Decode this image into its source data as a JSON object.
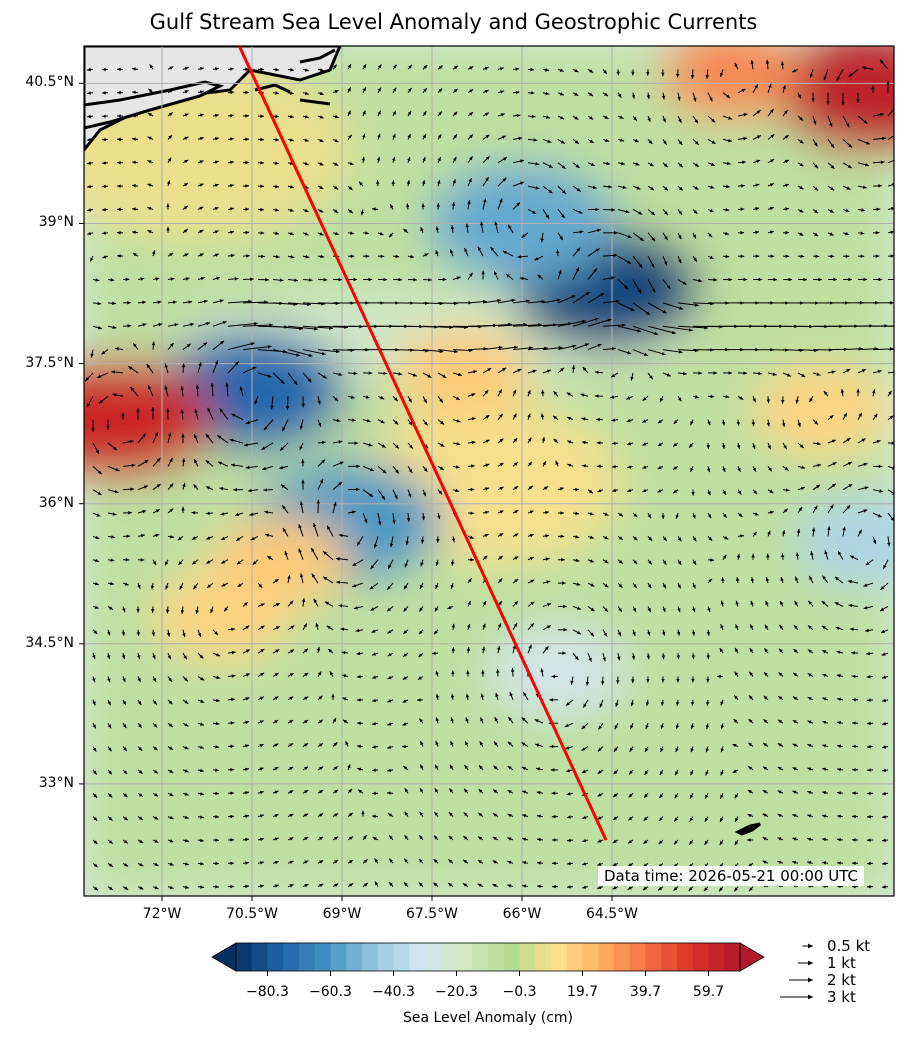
{
  "title": "Gulf Stream Sea Level Anomaly and Geostrophic Currents",
  "map": {
    "lon_range": [
      -73.3,
      -59.8
    ],
    "lat_range": [
      31.8,
      40.9
    ],
    "lat_ticks": [
      {
        "value": 40.5,
        "label": "40.5°N"
      },
      {
        "value": 39,
        "label": "39°N"
      },
      {
        "value": 37.5,
        "label": "37.5°N"
      },
      {
        "value": 36,
        "label": "36°N"
      },
      {
        "value": 34.5,
        "label": "34.5°N"
      },
      {
        "value": 33,
        "label": "33°N"
      }
    ],
    "lon_ticks": [
      {
        "value": -72,
        "label": "72°W"
      },
      {
        "value": -70.5,
        "label": "70.5°W"
      },
      {
        "value": -69,
        "label": "69°W"
      },
      {
        "value": -67.5,
        "label": "67.5°W"
      },
      {
        "value": -66,
        "label": "66°W"
      },
      {
        "value": -64.5,
        "label": "64.5°W"
      }
    ],
    "track": {
      "color": "#ff0000",
      "start": {
        "lon": -71.0,
        "lat": 41.3
      },
      "end": {
        "lon": -64.6,
        "lat": 32.4
      }
    },
    "grid": true,
    "land_color": "#e6e6e6"
  },
  "data_time": "Data time: 2026-05-21 00:00 UTC",
  "colorbar": {
    "label": "Sea Level Anomaly (cm)",
    "min": -90.3,
    "max": 69.7,
    "extend": "both",
    "tick_values": [
      -80.3,
      -60.3,
      -40.3,
      -20.3,
      -0.3,
      19.7,
      39.7,
      59.7
    ],
    "tick_labels": [
      "−80.3",
      "−60.3",
      "−40.3",
      "−20.3",
      "−0.3",
      "19.7",
      "39.7",
      "59.7"
    ],
    "colormap": [
      "#053061",
      "#2166ac",
      "#4393c3",
      "#92c5de",
      "#d1e5f0",
      "#cfe8c0",
      "#b5dc91",
      "#fee08b",
      "#fdae61",
      "#f46d43",
      "#d73027",
      "#b2182b"
    ]
  },
  "quiver_key": [
    {
      "label": "0.5 kt",
      "speed": 0.5
    },
    {
      "label": "1 kt",
      "speed": 1
    },
    {
      "label": "2 kt",
      "speed": 2
    },
    {
      "label": "3 kt",
      "speed": 3
    }
  ],
  "features": {
    "eddies": [
      {
        "lon": -70.5,
        "lat": 37.2,
        "sla": -75
      },
      {
        "lon": -68.9,
        "lat": 35.8,
        "sla": -60
      },
      {
        "lon": -64.6,
        "lat": 38.3,
        "sla": -85
      },
      {
        "lon": -66.0,
        "lat": 39.0,
        "sla": -55
      },
      {
        "lon": -72.7,
        "lat": 36.9,
        "sla": 60
      },
      {
        "lon": -60.2,
        "lat": 40.4,
        "sla": 65
      },
      {
        "lon": -62.5,
        "lat": 40.6,
        "sla": 35
      },
      {
        "lon": -71.0,
        "lat": 34.8,
        "sla": 15
      },
      {
        "lon": -70.0,
        "lat": 35.4,
        "sla": 18
      },
      {
        "lon": -65.4,
        "lat": 34.2,
        "sla": -30
      },
      {
        "lon": -60.3,
        "lat": 35.6,
        "sla": -40
      },
      {
        "lon": -61.0,
        "lat": 37.0,
        "sla": 15
      },
      {
        "lon": -67.0,
        "lat": 37.4,
        "sla": 18
      }
    ]
  }
}
